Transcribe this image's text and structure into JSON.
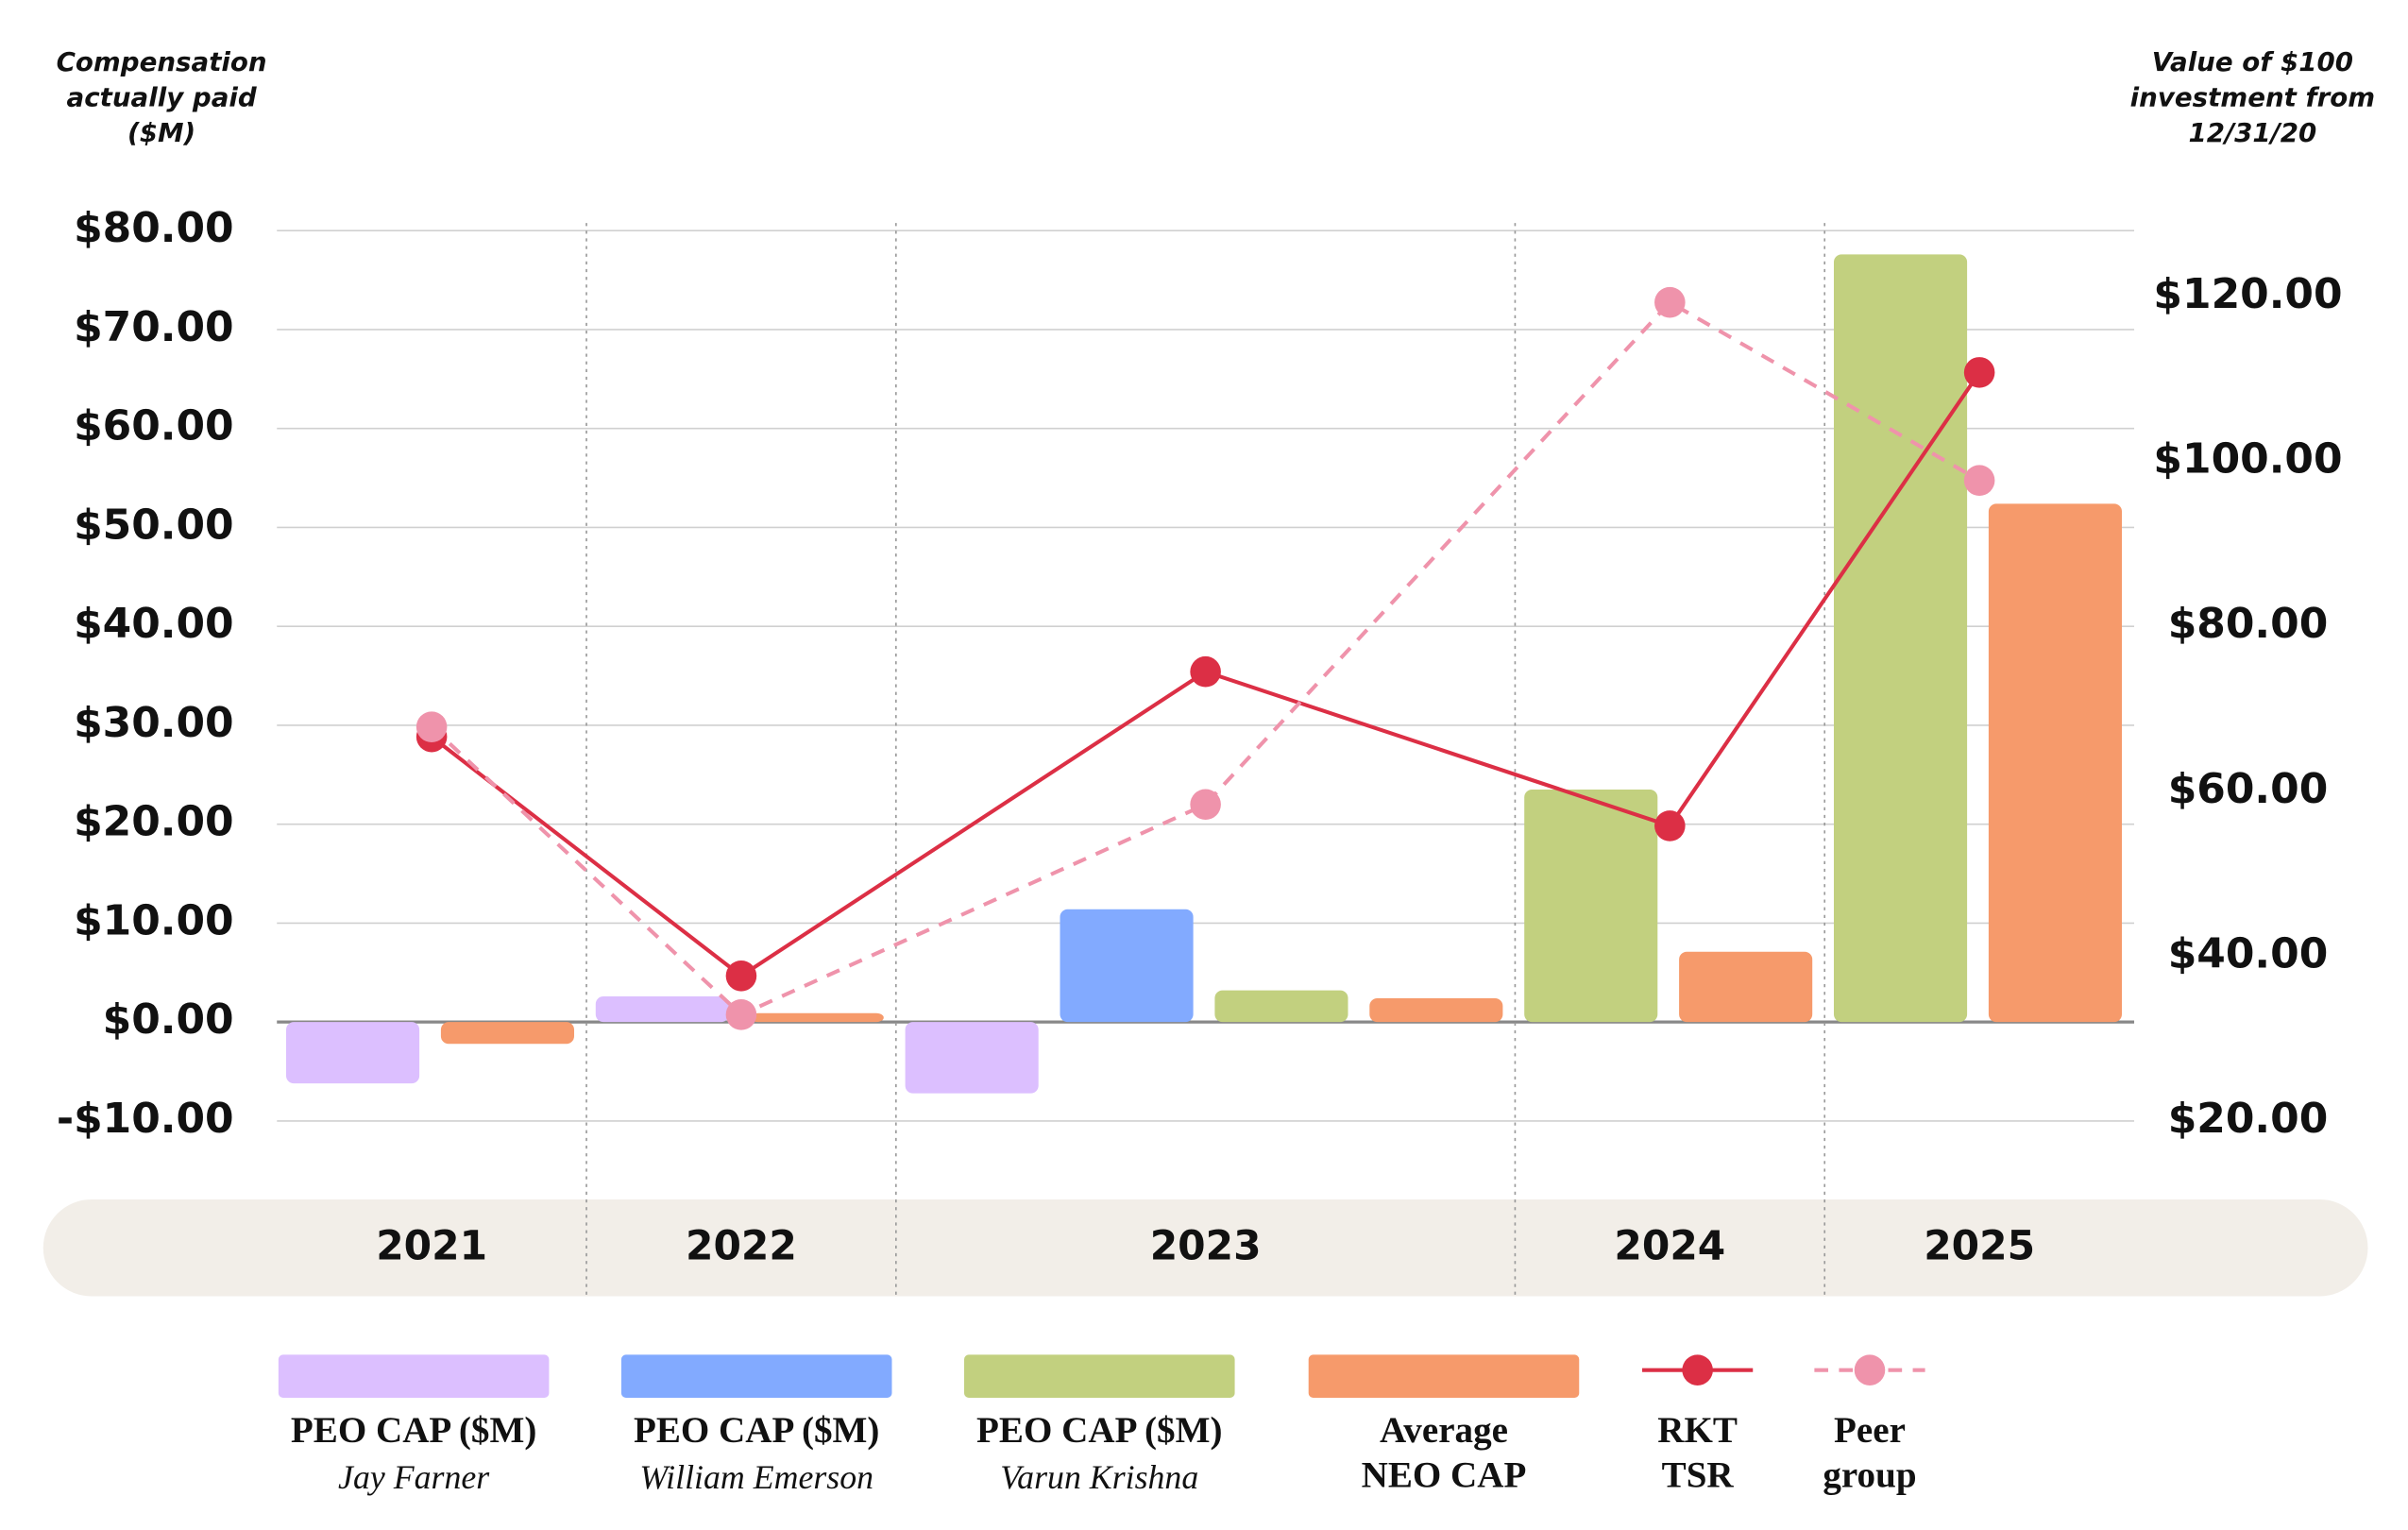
{
  "chart_data": {
    "type": "bar-line",
    "y_label": "Compensation actually paid ($M)",
    "y2_label": "Value of $100 investment from 12/31/20",
    "categories": [
      "2021",
      "2022",
      "2023",
      "2024",
      "2025"
    ],
    "ylim": [
      -10,
      80
    ],
    "yticks": [
      {
        "value": -10,
        "label": "-$10.00"
      },
      {
        "value": 0,
        "label": "$0.00"
      },
      {
        "value": 10,
        "label": "$10.00"
      },
      {
        "value": 20,
        "label": "$20.00"
      },
      {
        "value": 30,
        "label": "$30.00"
      },
      {
        "value": 40,
        "label": "$40.00"
      },
      {
        "value": 50,
        "label": "$50.00"
      },
      {
        "value": 60,
        "label": "$60.00"
      },
      {
        "value": 70,
        "label": "$70.00"
      },
      {
        "value": 80,
        "label": "$80.00"
      }
    ],
    "y2lim": [
      20,
      128
    ],
    "y2ticks": [
      {
        "value": 20,
        "label": "$20.00"
      },
      {
        "value": 40,
        "label": "$40.00"
      },
      {
        "value": 60,
        "label": "$60.00"
      },
      {
        "value": 80,
        "label": "$80.00"
      },
      {
        "value": 100,
        "label": "$100.00"
      },
      {
        "value": 120,
        "label": "$120.00"
      }
    ],
    "grid": true,
    "series": [
      {
        "name": "PEO CAP ($M)",
        "person": "Jay Farner",
        "type": "bar",
        "color": "#dcbfff",
        "values": [
          -6.2,
          2.6,
          -7.2,
          null,
          null
        ]
      },
      {
        "name": "PEO CAP ($M)",
        "person": "William Emerson",
        "type": "bar",
        "color": "#82aaff",
        "values": [
          null,
          null,
          11.4,
          null,
          null
        ]
      },
      {
        "name": "PEO CAP ($M)",
        "person": "Varun Krishna",
        "type": "bar",
        "color": "#c2d07f",
        "values": [
          null,
          null,
          3.2,
          23.5,
          77.6
        ]
      },
      {
        "name": "Average NEO CAP",
        "type": "bar",
        "color": "#f69a6b",
        "values": [
          -2.2,
          0.9,
          2.4,
          7.1,
          52.4
        ]
      },
      {
        "name": "RKT TSR",
        "type": "line",
        "axis": "y2",
        "color": "#dc2f45",
        "dashed": false,
        "values": [
          66.6,
          37.6,
          74.5,
          55.8,
          110.8
        ]
      },
      {
        "name": "Peer group",
        "type": "line",
        "axis": "y2",
        "color": "#ef93ab",
        "dashed": true,
        "values": [
          67.8,
          32.9,
          58.4,
          119.3,
          97.7
        ]
      }
    ]
  }
}
